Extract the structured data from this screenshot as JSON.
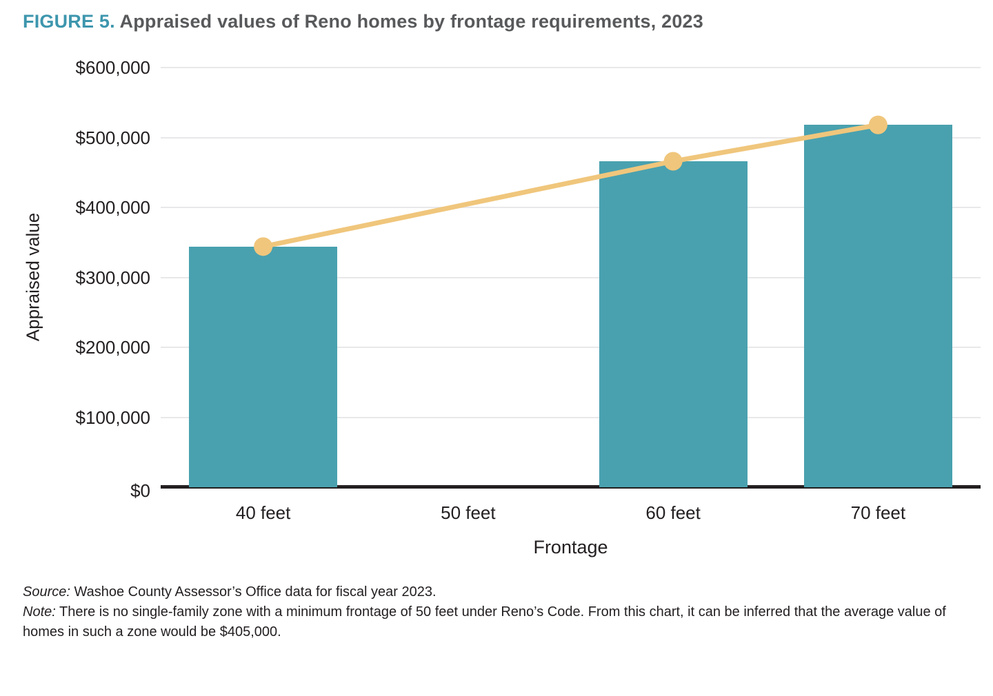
{
  "figure": {
    "label": "FIGURE 5.",
    "title": " Appraised values of Reno homes by frontage requirements, 2023"
  },
  "chart_data": {
    "type": "bar+line",
    "title": "Appraised values of Reno homes by frontage requirements, 2023",
    "xlabel": "Frontage",
    "ylabel": "Appraised value",
    "categories": [
      "40 feet",
      "50 feet",
      "60 feet",
      "70 feet"
    ],
    "bar_values": [
      344000,
      null,
      466000,
      518000
    ],
    "line_values": [
      344000,
      null,
      466000,
      518000
    ],
    "inferred_value_50_feet": 405000,
    "ylim": [
      0,
      600000
    ],
    "yticks": [
      {
        "value": 0,
        "label": "$0"
      },
      {
        "value": 100000,
        "label": "$100,000"
      },
      {
        "value": 200000,
        "label": "$200,000"
      },
      {
        "value": 300000,
        "label": "$300,000"
      },
      {
        "value": 400000,
        "label": "$400,000"
      },
      {
        "value": 500000,
        "label": "$500,000"
      },
      {
        "value": 600000,
        "label": "$600,000"
      }
    ],
    "grid": true,
    "legend": "none"
  },
  "colors": {
    "bar": "#49a1af",
    "line": "#f0c67c",
    "marker": "#f0c67c",
    "figure_label": "#3d96ad",
    "title_text": "#58595b",
    "axis_text": "#231f20",
    "gridline": "#e8e8ea",
    "axis_line": "#231f20"
  },
  "footnotes": {
    "source_label": "Source:",
    "source_text": " Washoe County Assessor’s Office data for fiscal year 2023.",
    "note_label": "Note:",
    "note_text": " There is no single-family zone with a minimum frontage of 50 feet under Reno’s Code. From this chart, it can be inferred that the average value of homes in such a zone would be $405,000."
  }
}
